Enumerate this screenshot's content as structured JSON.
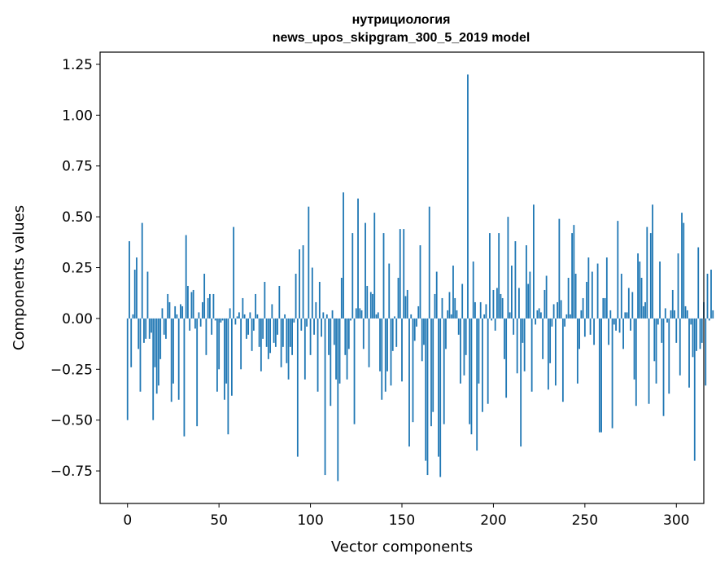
{
  "chart_data": {
    "type": "bar",
    "title": "нутрициология",
    "subtitle": "news_upos_skipgram_300_5_2019 model",
    "xlabel": "Vector components",
    "ylabel": "Components values",
    "xlim": [
      -15,
      315
    ],
    "ylim": [
      -0.91,
      1.31
    ],
    "xticks": [
      0,
      50,
      100,
      150,
      200,
      250,
      300
    ],
    "xtick_labels": [
      "0",
      "50",
      "100",
      "150",
      "200",
      "250",
      "300"
    ],
    "yticks": [
      -0.75,
      -0.5,
      -0.25,
      0.0,
      0.25,
      0.5,
      0.75,
      1.0,
      1.25
    ],
    "ytick_labels": [
      "−0.75",
      "−0.50",
      "−0.25",
      "0.00",
      "0.25",
      "0.50",
      "0.75",
      "1.00",
      "1.25"
    ],
    "bar_color": "#1f77b4",
    "grid": false,
    "values": [
      -0.5,
      0.38,
      -0.24,
      0.02,
      0.24,
      0.3,
      -0.15,
      -0.36,
      0.47,
      -0.12,
      -0.1,
      0.23,
      -0.1,
      -0.07,
      -0.5,
      -0.24,
      -0.37,
      -0.33,
      -0.2,
      0.05,
      -0.08,
      -0.1,
      0.12,
      0.08,
      -0.41,
      -0.32,
      0.06,
      0.02,
      -0.4,
      0.07,
      0.06,
      -0.58,
      0.41,
      0.16,
      -0.06,
      0.13,
      0.14,
      -0.05,
      -0.53,
      0.03,
      -0.04,
      0.08,
      0.22,
      -0.18,
      0.1,
      0.12,
      -0.08,
      0.12,
      -0.01,
      -0.36,
      -0.25,
      -0.02,
      -0.01,
      -0.4,
      -0.32,
      -0.57,
      0.05,
      -0.38,
      0.45,
      -0.03,
      0.01,
      0.03,
      -0.25,
      0.1,
      0.02,
      -0.1,
      -0.08,
      0.03,
      -0.16,
      -0.06,
      0.12,
      0.02,
      -0.14,
      -0.26,
      -0.1,
      0.18,
      -0.14,
      -0.2,
      -0.17,
      0.07,
      -0.12,
      -0.14,
      -0.08,
      0.16,
      -0.24,
      -0.14,
      0.02,
      -0.22,
      -0.3,
      -0.14,
      -0.18,
      -0.02,
      0.22,
      -0.68,
      0.34,
      -0.06,
      0.36,
      -0.3,
      -0.04,
      0.55,
      -0.18,
      0.25,
      -0.08,
      0.08,
      -0.36,
      0.18,
      -0.09,
      0.03,
      -0.77,
      0.02,
      -0.18,
      -0.43,
      0.04,
      -0.13,
      -0.3,
      -0.8,
      -0.32,
      0.2,
      0.62,
      -0.18,
      -0.3,
      -0.15,
      -0.01,
      0.42,
      -0.52,
      0.05,
      0.59,
      0.05,
      0.04,
      -0.15,
      0.47,
      0.16,
      -0.24,
      0.13,
      0.12,
      0.52,
      0.02,
      0.03,
      -0.26,
      -0.4,
      0.42,
      -0.36,
      -0.26,
      0.27,
      -0.33,
      -0.16,
      0.01,
      -0.14,
      0.2,
      0.44,
      -0.31,
      0.44,
      0.11,
      0.14,
      -0.63,
      0.02,
      -0.51,
      -0.11,
      -0.04,
      0.06,
      0.36,
      -0.21,
      -0.13,
      -0.7,
      -0.77,
      0.55,
      -0.53,
      -0.46,
      0.12,
      0.23,
      -0.68,
      -0.78,
      0.1,
      -0.52,
      -0.15,
      0.04,
      0.13,
      0.02,
      0.26,
      0.1,
      0.04,
      -0.08,
      -0.32,
      0.17,
      -0.28,
      -0.18,
      1.2,
      -0.52,
      -0.57,
      0.28,
      0.08,
      -0.65,
      -0.32,
      0.08,
      -0.46,
      0.02,
      0.07,
      -0.42,
      0.42,
      -0.01,
      0.14,
      -0.06,
      0.15,
      0.42,
      0.12,
      0.1,
      -0.2,
      -0.39,
      0.5,
      0.03,
      0.26,
      -0.08,
      0.38,
      -0.27,
      0.15,
      -0.63,
      -0.12,
      -0.26,
      0.36,
      0.17,
      0.23,
      -0.36,
      0.56,
      -0.03,
      0.04,
      0.05,
      0.03,
      -0.2,
      0.14,
      0.21,
      -0.35,
      -0.22,
      -0.04,
      0.07,
      -0.33,
      0.08,
      0.49,
      0.09,
      -0.41,
      -0.04,
      0.02,
      0.2,
      0.02,
      0.42,
      0.46,
      0.22,
      -0.32,
      -0.15,
      0.04,
      0.1,
      -0.09,
      0.18,
      0.3,
      -0.08,
      0.23,
      -0.13,
      0.0,
      0.27,
      -0.56,
      -0.56,
      0.1,
      0.1,
      0.3,
      -0.13,
      0.04,
      -0.54,
      -0.03,
      -0.06,
      0.48,
      -0.07,
      0.22,
      -0.15,
      0.03,
      0.03,
      0.15,
      -0.06,
      0.13,
      -0.3,
      -0.43,
      0.32,
      0.28,
      0.2,
      0.06,
      0.08,
      0.45,
      -0.42,
      0.42,
      0.56,
      -0.21,
      -0.32,
      -0.03,
      0.28,
      -0.12,
      -0.48,
      0.05,
      -0.02,
      -0.37,
      0.04,
      0.14,
      0.04,
      -0.12,
      0.32,
      -0.28,
      0.52,
      0.47,
      0.06,
      0.04,
      -0.34,
      -0.03,
      -0.19,
      -0.7,
      -0.16,
      0.35,
      -0.15,
      -0.12,
      0.08,
      -0.33,
      0.22,
      -0.01,
      0.24,
      0.04
    ]
  }
}
